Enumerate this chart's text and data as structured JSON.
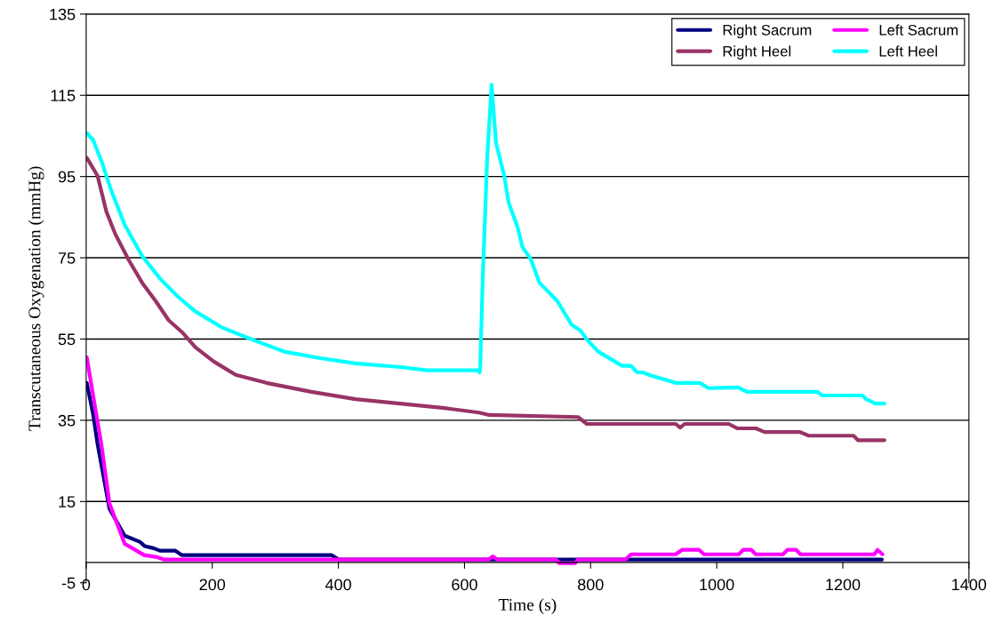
{
  "chart_data": {
    "type": "line",
    "xlabel": "Time (s)",
    "ylabel": "Transcutaneous Oxygenation (mmHg)",
    "xlim": [
      0,
      1400
    ],
    "xticks": [
      0,
      200,
      400,
      600,
      800,
      1000,
      1200,
      1400
    ],
    "ylim": [
      -5,
      135
    ],
    "yticks": [
      -5,
      15,
      35,
      55,
      75,
      95,
      115,
      135
    ],
    "grid": "y",
    "legend": "top right",
    "marker": "none",
    "line_style": "solid",
    "series": [
      {
        "name": "Right Sacrum",
        "color": "#000080",
        "x": [
          1,
          11,
          18,
          37,
          61,
          85,
          93,
          107,
          117,
          141,
          152,
          389,
          401,
          1262
        ],
        "values": [
          44.2,
          36.5,
          29.2,
          13.2,
          6.6,
          5.1,
          4.0,
          3.5,
          2.9,
          2.9,
          1.8,
          1.8,
          0.7,
          0.7
        ]
      },
      {
        "name": "Left Sacrum",
        "color": "#ff00ff",
        "x": [
          1,
          16,
          24,
          37,
          61,
          92,
          113,
          124,
          638,
          645,
          652,
          745,
          751,
          775,
          780,
          855,
          864,
          935,
          945,
          972,
          980,
          1035,
          1042,
          1055,
          1062,
          1105,
          1112,
          1126,
          1133,
          1250,
          1255,
          1263
        ],
        "values": [
          50.5,
          36.5,
          29.2,
          14.5,
          4.6,
          1.8,
          1.3,
          0.7,
          0.7,
          1.5,
          0.7,
          0.7,
          -0.2,
          -0.2,
          0.7,
          0.7,
          2.0,
          2.0,
          3.1,
          3.1,
          2.0,
          2.0,
          3.1,
          3.1,
          2.0,
          2.0,
          3.1,
          3.1,
          2.0,
          2.0,
          3.1,
          2.0
        ]
      },
      {
        "name": "Right Heel",
        "color": "#993366",
        "x": [
          1,
          18,
          32,
          46,
          68,
          89,
          110,
          131,
          152,
          173,
          202,
          237,
          286,
          357,
          427,
          498,
          568,
          623,
          639,
          780,
          794,
          935,
          942,
          949,
          1019,
          1033,
          1062,
          1076,
          1132,
          1146,
          1217,
          1224,
          1266
        ],
        "values": [
          99.6,
          95.2,
          86.4,
          80.9,
          74.3,
          68.8,
          64.4,
          59.6,
          56.7,
          53.0,
          49.5,
          46.2,
          44.2,
          42.0,
          40.2,
          39.1,
          38.0,
          36.9,
          36.3,
          35.8,
          34.1,
          34.1,
          33.2,
          34.1,
          34.1,
          33.0,
          33.0,
          32.1,
          32.1,
          31.2,
          31.2,
          30.1,
          30.1
        ]
      },
      {
        "name": "Left Heel",
        "color": "#00ffff",
        "x": [
          1,
          11,
          25,
          39,
          61,
          89,
          117,
          145,
          173,
          216,
          258,
          314,
          371,
          427,
          498,
          540,
          620,
          624,
          625,
          629,
          636,
          643,
          650,
          663,
          670,
          684,
          692,
          705,
          719,
          747,
          770,
          784,
          794,
          812,
          850,
          864,
          874,
          883,
          892,
          916,
          935,
          973,
          987,
          1034,
          1048,
          1160,
          1167,
          1231,
          1237,
          1252,
          1266
        ],
        "values": [
          105.7,
          104.0,
          98.5,
          91.9,
          83.1,
          75.4,
          69.9,
          65.5,
          61.8,
          57.8,
          55.2,
          51.9,
          50.3,
          49.0,
          48.1,
          47.3,
          47.3,
          46.8,
          48.4,
          70.3,
          99.6,
          117.6,
          103.3,
          95.2,
          88.6,
          82.6,
          77.6,
          74.7,
          68.8,
          64.4,
          58.5,
          57.1,
          54.9,
          51.9,
          48.4,
          48.4,
          46.8,
          46.8,
          46.2,
          45.1,
          44.2,
          44.2,
          42.9,
          43.1,
          42.0,
          42.0,
          41.1,
          41.1,
          40.2,
          39.1,
          39.1
        ]
      }
    ]
  }
}
